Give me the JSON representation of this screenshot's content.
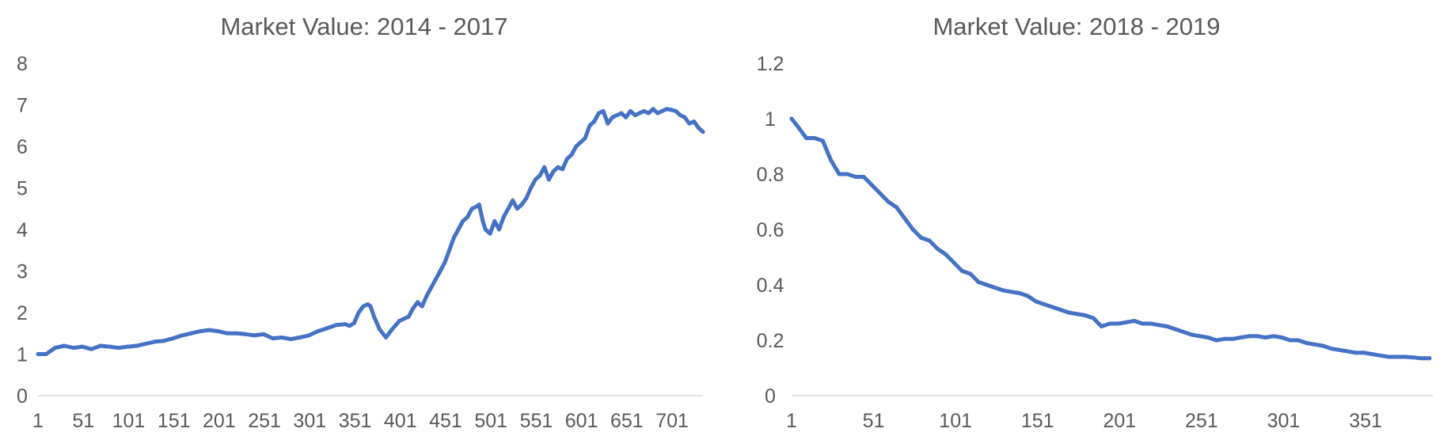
{
  "chart_data": [
    {
      "type": "line",
      "title": "Market Value: 2014 - 2017",
      "xlabel": "",
      "ylabel": "",
      "ylim": [
        0,
        8
      ],
      "yticks": [
        "0",
        "1",
        "2",
        "3",
        "4",
        "5",
        "6",
        "7",
        "8"
      ],
      "xticks": [
        "1",
        "51",
        "101",
        "151",
        "201",
        "251",
        "301",
        "351",
        "401",
        "451",
        "501",
        "551",
        "601",
        "651",
        "701"
      ],
      "x_range": [
        1,
        735
      ],
      "grid": false,
      "legend": "none",
      "color": "#4472c4",
      "series": [
        {
          "x": [
            1,
            10,
            20,
            30,
            40,
            50,
            60,
            70,
            80,
            90,
            100,
            110,
            120,
            130,
            140,
            150,
            160,
            170,
            180,
            190,
            200,
            210,
            220,
            230,
            240,
            250,
            260,
            270,
            280,
            290,
            300,
            310,
            320,
            330,
            340,
            345,
            350,
            355,
            360,
            365,
            368,
            372,
            378,
            385,
            392,
            400,
            405,
            410,
            415,
            420,
            425,
            430,
            435,
            440,
            445,
            450,
            455,
            460,
            465,
            470,
            475,
            480,
            485,
            488,
            492,
            495,
            500,
            505,
            510,
            515,
            520,
            525,
            530,
            535,
            540,
            545,
            550,
            555,
            560,
            565,
            570,
            575,
            580,
            585,
            590,
            595,
            600,
            605,
            610,
            615,
            620,
            625,
            630,
            635,
            640,
            645,
            650,
            655,
            660,
            665,
            670,
            675,
            680,
            685,
            690,
            695,
            700,
            705,
            710,
            715,
            720,
            725,
            730,
            735
          ],
          "values": [
            1.0,
            1.0,
            1.15,
            1.2,
            1.15,
            1.18,
            1.12,
            1.2,
            1.18,
            1.15,
            1.18,
            1.2,
            1.25,
            1.3,
            1.32,
            1.38,
            1.45,
            1.5,
            1.55,
            1.58,
            1.55,
            1.5,
            1.5,
            1.48,
            1.45,
            1.48,
            1.38,
            1.4,
            1.36,
            1.4,
            1.45,
            1.55,
            1.62,
            1.7,
            1.72,
            1.68,
            1.75,
            2.0,
            2.15,
            2.2,
            2.15,
            1.9,
            1.6,
            1.4,
            1.6,
            1.8,
            1.85,
            1.9,
            2.1,
            2.25,
            2.15,
            2.4,
            2.6,
            2.8,
            3.0,
            3.2,
            3.5,
            3.8,
            4.0,
            4.2,
            4.3,
            4.5,
            4.55,
            4.6,
            4.2,
            4.0,
            3.9,
            4.2,
            4.0,
            4.3,
            4.5,
            4.7,
            4.5,
            4.6,
            4.75,
            5.0,
            5.2,
            5.3,
            5.5,
            5.2,
            5.4,
            5.5,
            5.45,
            5.7,
            5.8,
            6.0,
            6.1,
            6.2,
            6.5,
            6.6,
            6.8,
            6.85,
            6.55,
            6.7,
            6.75,
            6.8,
            6.7,
            6.85,
            6.75,
            6.8,
            6.85,
            6.8,
            6.9,
            6.8,
            6.85,
            6.9,
            6.88,
            6.85,
            6.75,
            6.7,
            6.55,
            6.6,
            6.45,
            6.35
          ]
        }
      ]
    },
    {
      "type": "line",
      "title": "Market Value: 2018 - 2019",
      "xlabel": "",
      "ylabel": "",
      "ylim": [
        0,
        1.2
      ],
      "yticks": [
        "0",
        "0.2",
        "0.4",
        "0.6",
        "0.8",
        "1",
        "1.2"
      ],
      "xticks": [
        "1",
        "51",
        "101",
        "151",
        "201",
        "251",
        "301",
        "351"
      ],
      "x_range": [
        1,
        392
      ],
      "grid": false,
      "legend": "none",
      "color": "#4472c4",
      "series": [
        {
          "x": [
            1,
            5,
            10,
            15,
            20,
            25,
            30,
            35,
            40,
            45,
            50,
            55,
            60,
            65,
            70,
            75,
            80,
            85,
            90,
            95,
            100,
            105,
            110,
            115,
            120,
            125,
            130,
            135,
            140,
            145,
            150,
            155,
            160,
            165,
            170,
            175,
            180,
            185,
            190,
            195,
            200,
            205,
            210,
            215,
            220,
            225,
            230,
            235,
            240,
            245,
            250,
            255,
            260,
            265,
            270,
            275,
            280,
            285,
            290,
            295,
            300,
            305,
            310,
            315,
            320,
            325,
            330,
            335,
            340,
            345,
            350,
            355,
            360,
            365,
            370,
            375,
            380,
            385,
            390
          ],
          "values": [
            1.0,
            0.97,
            0.93,
            0.93,
            0.92,
            0.85,
            0.8,
            0.8,
            0.79,
            0.79,
            0.76,
            0.73,
            0.7,
            0.68,
            0.64,
            0.6,
            0.57,
            0.56,
            0.53,
            0.51,
            0.48,
            0.45,
            0.44,
            0.41,
            0.4,
            0.39,
            0.38,
            0.375,
            0.37,
            0.36,
            0.34,
            0.33,
            0.32,
            0.31,
            0.3,
            0.295,
            0.29,
            0.28,
            0.25,
            0.26,
            0.26,
            0.265,
            0.27,
            0.26,
            0.26,
            0.255,
            0.25,
            0.24,
            0.23,
            0.22,
            0.215,
            0.21,
            0.2,
            0.205,
            0.205,
            0.21,
            0.215,
            0.215,
            0.21,
            0.215,
            0.21,
            0.2,
            0.2,
            0.19,
            0.185,
            0.18,
            0.17,
            0.165,
            0.16,
            0.155,
            0.155,
            0.15,
            0.145,
            0.14,
            0.14,
            0.14,
            0.138,
            0.135,
            0.135
          ]
        }
      ]
    }
  ]
}
